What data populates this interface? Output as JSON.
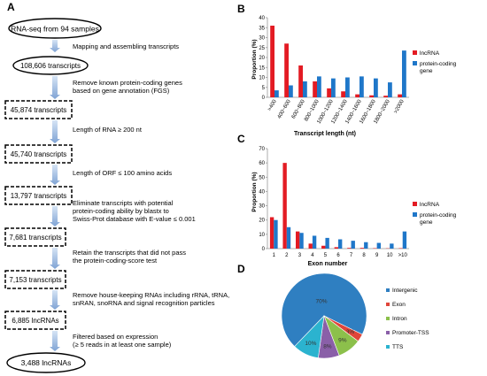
{
  "panels": {
    "a": "A",
    "b": "B",
    "c": "C",
    "d": "D"
  },
  "flowchart": {
    "nodes": [
      {
        "text": "RNA-seq from 94 samples",
        "shape": "ellipse"
      },
      {
        "text": "108,606 transcripts",
        "shape": "ellipse"
      },
      {
        "text": "45,874 transcripts",
        "shape": "dashed-box"
      },
      {
        "text": "45,740 transcripts",
        "shape": "dashed-box"
      },
      {
        "text": "13,797 transcripts",
        "shape": "dashed-box"
      },
      {
        "text": "7,681 transcripts",
        "shape": "dashed-box"
      },
      {
        "text": "7,153 transcripts",
        "shape": "dashed-box"
      },
      {
        "text": "6,885 lncRNAs",
        "shape": "dashed-box"
      },
      {
        "text": "3,488 lncRNAs",
        "shape": "ellipse"
      }
    ],
    "steps": [
      [
        "Mapping and assembling transcripts"
      ],
      [
        "Remove  known protein-coding genes",
        "based on gene annotation (FGS)"
      ],
      [
        "Length of RNA ≥ 200 nt"
      ],
      [
        "Length of ORF ≤ 100 amino acids"
      ],
      [
        "Eliminate transcripts with potential",
        "protein-coding ability by blastx to",
        "Swiss-Prot database with E-value ≤ 0.001"
      ],
      [
        "Retain the transcripts that did not pass",
        "the protein-coding-score test"
      ],
      [
        "Remove house-keeping RNAs including rRNA, tRNA,",
        "snRAN, snoRNA and signal recognition particles"
      ],
      [
        "Filtered based on expression",
        "(≥ 5 reads in at least one sample)"
      ]
    ]
  },
  "colors": {
    "lncrna": "#e31b23",
    "coding": "#1f77c9",
    "arrow": "#a9c3e6"
  },
  "chart_data": [
    {
      "type": "bar",
      "panel": "B",
      "categories": [
        ">400",
        "400~600",
        "600~800",
        "800~1000",
        "1000~1200",
        "1200~1400",
        "1400~1600",
        "1600~1800",
        "1800~2000",
        ">2000"
      ],
      "series": [
        {
          "name": "lncRNA",
          "color": "#e31b23",
          "values": [
            36,
            27,
            16,
            8,
            4.5,
            3,
            1.5,
            1,
            0.8,
            1.5
          ]
        },
        {
          "name": "protein-coding gene",
          "color": "#1f77c9",
          "values": [
            3.5,
            6,
            8,
            10.5,
            9.5,
            10,
            10.5,
            9.5,
            7.5,
            23.5
          ]
        }
      ],
      "xlabel": "Transcript length (nt)",
      "ylabel": "Proportion (%)",
      "ylim": [
        0,
        40
      ],
      "yticks": [
        0,
        5,
        10,
        15,
        20,
        25,
        30,
        35,
        40
      ],
      "legend": "right",
      "grid": false
    },
    {
      "type": "bar",
      "panel": "C",
      "categories": [
        "1",
        "2",
        "3",
        "4",
        "5",
        "6",
        "7",
        "8",
        "9",
        "10",
        ">10"
      ],
      "series": [
        {
          "name": "lncRNA",
          "color": "#e31b23",
          "values": [
            22,
            60,
            12,
            3.5,
            2,
            1,
            0.5,
            0.5,
            0.3,
            0.2,
            0.3
          ]
        },
        {
          "name": "protein-coding gene",
          "color": "#1f77c9",
          "values": [
            20,
            15,
            11,
            9,
            7.5,
            6.5,
            5.5,
            4.5,
            4,
            3.5,
            12
          ]
        }
      ],
      "xlabel": "Exon number",
      "ylabel": "Proportion (%)",
      "ylim": [
        0,
        70
      ],
      "yticks": [
        0,
        10,
        20,
        30,
        40,
        50,
        60,
        70
      ],
      "legend": "right",
      "grid": false
    },
    {
      "type": "pie",
      "panel": "D",
      "slices": [
        {
          "label": "Intergenic",
          "value": 70,
          "text": "70%",
          "color": "#2f7fc1"
        },
        {
          "label": "Exon",
          "value": 3,
          "text": "3%",
          "color": "#e0453a"
        },
        {
          "label": "Intron",
          "value": 9,
          "text": "9%",
          "color": "#8cc04b"
        },
        {
          "label": "Promoter-TSS",
          "value": 8,
          "text": "8%",
          "color": "#8a5fa8"
        },
        {
          "label": "TTS",
          "value": 10,
          "text": "10%",
          "color": "#2bb3cf"
        }
      ],
      "legend": "right"
    }
  ]
}
